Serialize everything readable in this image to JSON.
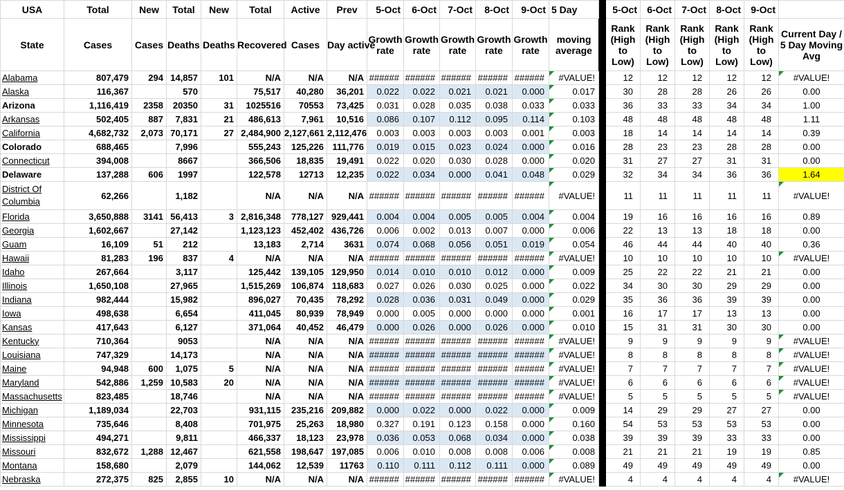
{
  "colors": {
    "band_blue": "#DBE8F4",
    "highlight_yellow": "#FFFF00",
    "error_indicator_green": "#1E8E3E",
    "gridline_gray": "#D8D8D8",
    "divider_black": "#000000"
  },
  "table": {
    "header_row1": [
      "USA",
      "Total",
      "New",
      "Total",
      "New",
      "Total",
      "Active",
      "Prev",
      "5-Oct",
      "6-Oct",
      "7-Oct",
      "8-Oct",
      "9-Oct",
      "5 Day",
      "",
      "5-Oct",
      "6-Oct",
      "7-Oct",
      "8-Oct",
      "9-Oct",
      ""
    ],
    "header_row2": [
      "State",
      "Cases",
      "Cases",
      "Deaths",
      "Deaths",
      "Recovered",
      "Cases",
      "Day active",
      "Growth rate",
      "Growth rate",
      "Growth rate",
      "Growth rate",
      "Growth rate",
      "moving average",
      "",
      "Rank (High to Low)",
      "Rank (High to Low)",
      "Rank (High to Low)",
      "Rank (High to Low)",
      "Rank (High to Low)",
      "Current Day / 5 Day Moving Avg"
    ]
  },
  "rows": [
    {
      "state": "Alabama",
      "bold_state": false,
      "cases": "807,479",
      "new_cases": "294",
      "deaths": "14,857",
      "new_deaths": "101",
      "recovered": "N/A",
      "active": "N/A",
      "prev": "N/A",
      "growth": [
        "######",
        "######",
        "######",
        "######",
        "######"
      ],
      "moving_avg": "#VALUE!",
      "ranks": [
        "12",
        "12",
        "12",
        "12",
        "12"
      ],
      "ratio": "#VALUE!",
      "ratio_highlight": false
    },
    {
      "state": "Alaska",
      "bold_state": false,
      "cases": "116,367",
      "new_cases": "",
      "deaths": "570",
      "new_deaths": "",
      "recovered": "75,517",
      "active": "40,280",
      "prev": "36,201",
      "growth": [
        "0.022",
        "0.022",
        "0.021",
        "0.021",
        "0.000"
      ],
      "moving_avg": "0.017",
      "ranks": [
        "30",
        "28",
        "28",
        "26",
        "26"
      ],
      "ratio": "0.00",
      "ratio_highlight": false
    },
    {
      "state": "Arizona",
      "bold_state": true,
      "cases": "1,116,419",
      "new_cases": "2358",
      "deaths": "20350",
      "new_deaths": "31",
      "recovered": "1025516",
      "active": "70553",
      "prev": "73,425",
      "growth": [
        "0.031",
        "0.028",
        "0.035",
        "0.038",
        "0.033"
      ],
      "moving_avg": "0.033",
      "ranks": [
        "36",
        "33",
        "33",
        "34",
        "34"
      ],
      "ratio": "1.00",
      "ratio_highlight": false
    },
    {
      "state": "Arkansas",
      "bold_state": false,
      "cases": "502,405",
      "new_cases": "887",
      "deaths": "7,831",
      "new_deaths": "21",
      "recovered": "486,613",
      "active": "7,961",
      "prev": "10,516",
      "growth": [
        "0.086",
        "0.107",
        "0.112",
        "0.095",
        "0.114"
      ],
      "moving_avg": "0.103",
      "ranks": [
        "48",
        "48",
        "48",
        "48",
        "48"
      ],
      "ratio": "1.11",
      "ratio_highlight": false
    },
    {
      "state": "California",
      "bold_state": false,
      "cases": "4,682,732",
      "new_cases": "2,073",
      "deaths": "70,171",
      "new_deaths": "27",
      "recovered": "2,484,900",
      "active": "2,127,661",
      "prev": "2,112,476",
      "growth": [
        "0.003",
        "0.003",
        "0.003",
        "0.003",
        "0.001"
      ],
      "moving_avg": "0.003",
      "ranks": [
        "18",
        "14",
        "14",
        "14",
        "14"
      ],
      "ratio": "0.39",
      "ratio_highlight": false
    },
    {
      "state": "Colorado",
      "bold_state": true,
      "cases": "688,465",
      "new_cases": "",
      "deaths": "7,996",
      "new_deaths": "",
      "recovered": "555,243",
      "active": "125,226",
      "prev": "111,776",
      "growth": [
        "0.019",
        "0.015",
        "0.023",
        "0.024",
        "0.000"
      ],
      "moving_avg": "0.016",
      "ranks": [
        "28",
        "23",
        "23",
        "28",
        "28"
      ],
      "ratio": "0.00",
      "ratio_highlight": false
    },
    {
      "state": "Connecticut",
      "bold_state": false,
      "cases": "394,008",
      "new_cases": "",
      "deaths": "8667",
      "new_deaths": "",
      "recovered": "366,506",
      "active": "18,835",
      "prev": "19,491",
      "growth": [
        "0.022",
        "0.020",
        "0.030",
        "0.028",
        "0.000"
      ],
      "moving_avg": "0.020",
      "ranks": [
        "31",
        "27",
        "27",
        "31",
        "31"
      ],
      "ratio": "0.00",
      "ratio_highlight": false
    },
    {
      "state": "Delaware",
      "bold_state": true,
      "cases": "137,288",
      "new_cases": "606",
      "deaths": "1997",
      "new_deaths": "",
      "recovered": "122,578",
      "active": "12713",
      "prev": "12,235",
      "growth": [
        "0.022",
        "0.034",
        "0.000",
        "0.041",
        "0.048"
      ],
      "moving_avg": "0.029",
      "ranks": [
        "32",
        "34",
        "34",
        "36",
        "36"
      ],
      "ratio": "1.64",
      "ratio_highlight": true
    },
    {
      "state": "District Of Columbia",
      "bold_state": false,
      "cases": "62,266",
      "new_cases": "",
      "deaths": "1,182",
      "new_deaths": "",
      "recovered": "N/A",
      "active": "N/A",
      "prev": "N/A",
      "growth": [
        "######",
        "######",
        "######",
        "######",
        "######"
      ],
      "moving_avg": "#VALUE!",
      "ranks": [
        "11",
        "11",
        "11",
        "11",
        "11"
      ],
      "ratio": "#VALUE!",
      "ratio_highlight": false
    },
    {
      "state": "Florida",
      "bold_state": false,
      "cases": "3,650,888",
      "new_cases": "3141",
      "deaths": "56,413",
      "new_deaths": "3",
      "recovered": "2,816,348",
      "active": "778,127",
      "prev": "929,441",
      "growth": [
        "0.004",
        "0.004",
        "0.005",
        "0.005",
        "0.004"
      ],
      "moving_avg": "0.004",
      "ranks": [
        "19",
        "16",
        "16",
        "16",
        "16"
      ],
      "ratio": "0.89",
      "ratio_highlight": false
    },
    {
      "state": "Georgia",
      "bold_state": false,
      "cases": "1,602,667",
      "new_cases": "",
      "deaths": "27,142",
      "new_deaths": "",
      "recovered": "1,123,123",
      "active": "452,402",
      "prev": "436,726",
      "growth": [
        "0.006",
        "0.002",
        "0.013",
        "0.007",
        "0.000"
      ],
      "moving_avg": "0.006",
      "ranks": [
        "22",
        "13",
        "13",
        "18",
        "18"
      ],
      "ratio": "0.00",
      "ratio_highlight": false
    },
    {
      "state": "Guam",
      "bold_state": false,
      "cases": "16,109",
      "new_cases": "51",
      "deaths": "212",
      "new_deaths": "",
      "recovered": "13,183",
      "active": "2,714",
      "prev": "3631",
      "growth": [
        "0.074",
        "0.068",
        "0.056",
        "0.051",
        "0.019"
      ],
      "moving_avg": "0.054",
      "ranks": [
        "46",
        "44",
        "44",
        "40",
        "40"
      ],
      "ratio": "0.36",
      "ratio_highlight": false
    },
    {
      "state": "Hawaii",
      "bold_state": false,
      "cases": "81,283",
      "new_cases": "196",
      "deaths": "837",
      "new_deaths": "4",
      "recovered": "N/A",
      "active": "N/A",
      "prev": "N/A",
      "growth": [
        "######",
        "######",
        "######",
        "######",
        "######"
      ],
      "moving_avg": "#VALUE!",
      "ranks": [
        "10",
        "10",
        "10",
        "10",
        "10"
      ],
      "ratio": "#VALUE!",
      "ratio_highlight": false
    },
    {
      "state": "Idaho",
      "bold_state": false,
      "cases": "267,664",
      "new_cases": "",
      "deaths": "3,117",
      "new_deaths": "",
      "recovered": "125,442",
      "active": "139,105",
      "prev": "129,950",
      "growth": [
        "0.014",
        "0.010",
        "0.010",
        "0.012",
        "0.000"
      ],
      "moving_avg": "0.009",
      "ranks": [
        "25",
        "22",
        "22",
        "21",
        "21"
      ],
      "ratio": "0.00",
      "ratio_highlight": false
    },
    {
      "state": "Illinois",
      "bold_state": false,
      "cases": "1,650,108",
      "new_cases": "",
      "deaths": "27,965",
      "new_deaths": "",
      "recovered": "1,515,269",
      "active": "106,874",
      "prev": "118,683",
      "growth": [
        "0.027",
        "0.026",
        "0.030",
        "0.025",
        "0.000"
      ],
      "moving_avg": "0.022",
      "ranks": [
        "34",
        "30",
        "30",
        "29",
        "29"
      ],
      "ratio": "0.00",
      "ratio_highlight": false
    },
    {
      "state": "Indiana",
      "bold_state": false,
      "cases": "982,444",
      "new_cases": "",
      "deaths": "15,982",
      "new_deaths": "",
      "recovered": "896,027",
      "active": "70,435",
      "prev": "78,292",
      "growth": [
        "0.028",
        "0.036",
        "0.031",
        "0.049",
        "0.000"
      ],
      "moving_avg": "0.029",
      "ranks": [
        "35",
        "36",
        "36",
        "39",
        "39"
      ],
      "ratio": "0.00",
      "ratio_highlight": false
    },
    {
      "state": "Iowa",
      "bold_state": false,
      "cases": "498,638",
      "new_cases": "",
      "deaths": "6,654",
      "new_deaths": "",
      "recovered": "411,045",
      "active": "80,939",
      "prev": "78,949",
      "growth": [
        "0.000",
        "0.005",
        "0.000",
        "0.000",
        "0.000"
      ],
      "moving_avg": "0.001",
      "ranks": [
        "16",
        "17",
        "17",
        "13",
        "13"
      ],
      "ratio": "0.00",
      "ratio_highlight": false
    },
    {
      "state": "Kansas",
      "bold_state": false,
      "cases": "417,643",
      "new_cases": "",
      "deaths": "6,127",
      "new_deaths": "",
      "recovered": "371,064",
      "active": "40,452",
      "prev": "46,479",
      "growth": [
        "0.000",
        "0.026",
        "0.000",
        "0.026",
        "0.000"
      ],
      "moving_avg": "0.010",
      "ranks": [
        "15",
        "31",
        "31",
        "30",
        "30"
      ],
      "ratio": "0.00",
      "ratio_highlight": false
    },
    {
      "state": "Kentucky",
      "bold_state": false,
      "cases": "710,364",
      "new_cases": "",
      "deaths": "9053",
      "new_deaths": "",
      "recovered": "N/A",
      "active": "N/A",
      "prev": "N/A",
      "growth": [
        "######",
        "######",
        "######",
        "######",
        "######"
      ],
      "moving_avg": "#VALUE!",
      "ranks": [
        "9",
        "9",
        "9",
        "9",
        "9"
      ],
      "ratio": "#VALUE!",
      "ratio_highlight": false
    },
    {
      "state": "Louisiana",
      "bold_state": false,
      "cases": "747,329",
      "new_cases": "",
      "deaths": "14,173",
      "new_deaths": "",
      "recovered": "N/A",
      "active": "N/A",
      "prev": "N/A",
      "growth": [
        "######",
        "######",
        "######",
        "######",
        "######"
      ],
      "moving_avg": "#VALUE!",
      "ranks": [
        "8",
        "8",
        "8",
        "8",
        "8"
      ],
      "ratio": "#VALUE!",
      "ratio_highlight": false
    },
    {
      "state": "Maine",
      "bold_state": false,
      "cases": "94,948",
      "new_cases": "600",
      "deaths": "1,075",
      "new_deaths": "5",
      "recovered": "N/A",
      "active": "N/A",
      "prev": "N/A",
      "growth": [
        "######",
        "######",
        "######",
        "######",
        "######"
      ],
      "moving_avg": "#VALUE!",
      "ranks": [
        "7",
        "7",
        "7",
        "7",
        "7"
      ],
      "ratio": "#VALUE!",
      "ratio_highlight": false
    },
    {
      "state": "Maryland",
      "bold_state": false,
      "cases": "542,886",
      "new_cases": "1,259",
      "deaths": "10,583",
      "new_deaths": "20",
      "recovered": "N/A",
      "active": "N/A",
      "prev": "N/A",
      "growth": [
        "######",
        "######",
        "######",
        "######",
        "######"
      ],
      "moving_avg": "#VALUE!",
      "ranks": [
        "6",
        "6",
        "6",
        "6",
        "6"
      ],
      "ratio": "#VALUE!",
      "ratio_highlight": false
    },
    {
      "state": "Massachusetts",
      "bold_state": false,
      "cases": "823,485",
      "new_cases": "",
      "deaths": "18,746",
      "new_deaths": "",
      "recovered": "N/A",
      "active": "N/A",
      "prev": "N/A",
      "growth": [
        "######",
        "######",
        "######",
        "######",
        "######"
      ],
      "moving_avg": "#VALUE!",
      "ranks": [
        "5",
        "5",
        "5",
        "5",
        "5"
      ],
      "ratio": "#VALUE!",
      "ratio_highlight": false
    },
    {
      "state": "Michigan",
      "bold_state": false,
      "cases": "1,189,034",
      "new_cases": "",
      "deaths": "22,703",
      "new_deaths": "",
      "recovered": "931,115",
      "active": "235,216",
      "prev": "209,882",
      "growth": [
        "0.000",
        "0.022",
        "0.000",
        "0.022",
        "0.000"
      ],
      "moving_avg": "0.009",
      "ranks": [
        "14",
        "29",
        "29",
        "27",
        "27"
      ],
      "ratio": "0.00",
      "ratio_highlight": false
    },
    {
      "state": "Minnesota",
      "bold_state": false,
      "cases": "735,646",
      "new_cases": "",
      "deaths": "8,408",
      "new_deaths": "",
      "recovered": "701,975",
      "active": "25,263",
      "prev": "18,980",
      "growth": [
        "0.327",
        "0.191",
        "0.123",
        "0.158",
        "0.000"
      ],
      "moving_avg": "0.160",
      "ranks": [
        "54",
        "53",
        "53",
        "53",
        "53"
      ],
      "ratio": "0.00",
      "ratio_highlight": false
    },
    {
      "state": "Mississippi",
      "bold_state": false,
      "cases": "494,271",
      "new_cases": "",
      "deaths": "9,811",
      "new_deaths": "",
      "recovered": "466,337",
      "active": "18,123",
      "prev": "23,978",
      "growth": [
        "0.036",
        "0.053",
        "0.068",
        "0.034",
        "0.000"
      ],
      "moving_avg": "0.038",
      "ranks": [
        "39",
        "39",
        "39",
        "33",
        "33"
      ],
      "ratio": "0.00",
      "ratio_highlight": false
    },
    {
      "state": "Missouri",
      "bold_state": false,
      "cases": "832,672",
      "new_cases": "1,288",
      "deaths": "12,467",
      "new_deaths": "",
      "recovered": "621,558",
      "active": "198,647",
      "prev": "197,085",
      "growth": [
        "0.006",
        "0.010",
        "0.008",
        "0.008",
        "0.006"
      ],
      "moving_avg": "0.008",
      "ranks": [
        "21",
        "21",
        "21",
        "19",
        "19"
      ],
      "ratio": "0.85",
      "ratio_highlight": false
    },
    {
      "state": "Montana",
      "bold_state": false,
      "cases": "158,680",
      "new_cases": "",
      "deaths": "2,079",
      "new_deaths": "",
      "recovered": "144,062",
      "active": "12,539",
      "prev": "11763",
      "growth": [
        "0.110",
        "0.111",
        "0.112",
        "0.111",
        "0.000"
      ],
      "moving_avg": "0.089",
      "ranks": [
        "49",
        "49",
        "49",
        "49",
        "49"
      ],
      "ratio": "0.00",
      "ratio_highlight": false
    },
    {
      "state": "Nebraska",
      "bold_state": false,
      "cases": "272,375",
      "new_cases": "825",
      "deaths": "2,855",
      "new_deaths": "10",
      "recovered": "N/A",
      "active": "N/A",
      "prev": "N/A",
      "growth": [
        "######",
        "######",
        "######",
        "######",
        "######"
      ],
      "moving_avg": "#VALUE!",
      "ranks": [
        "4",
        "4",
        "4",
        "4",
        "4"
      ],
      "ratio": "#VALUE!",
      "ratio_highlight": false
    }
  ]
}
